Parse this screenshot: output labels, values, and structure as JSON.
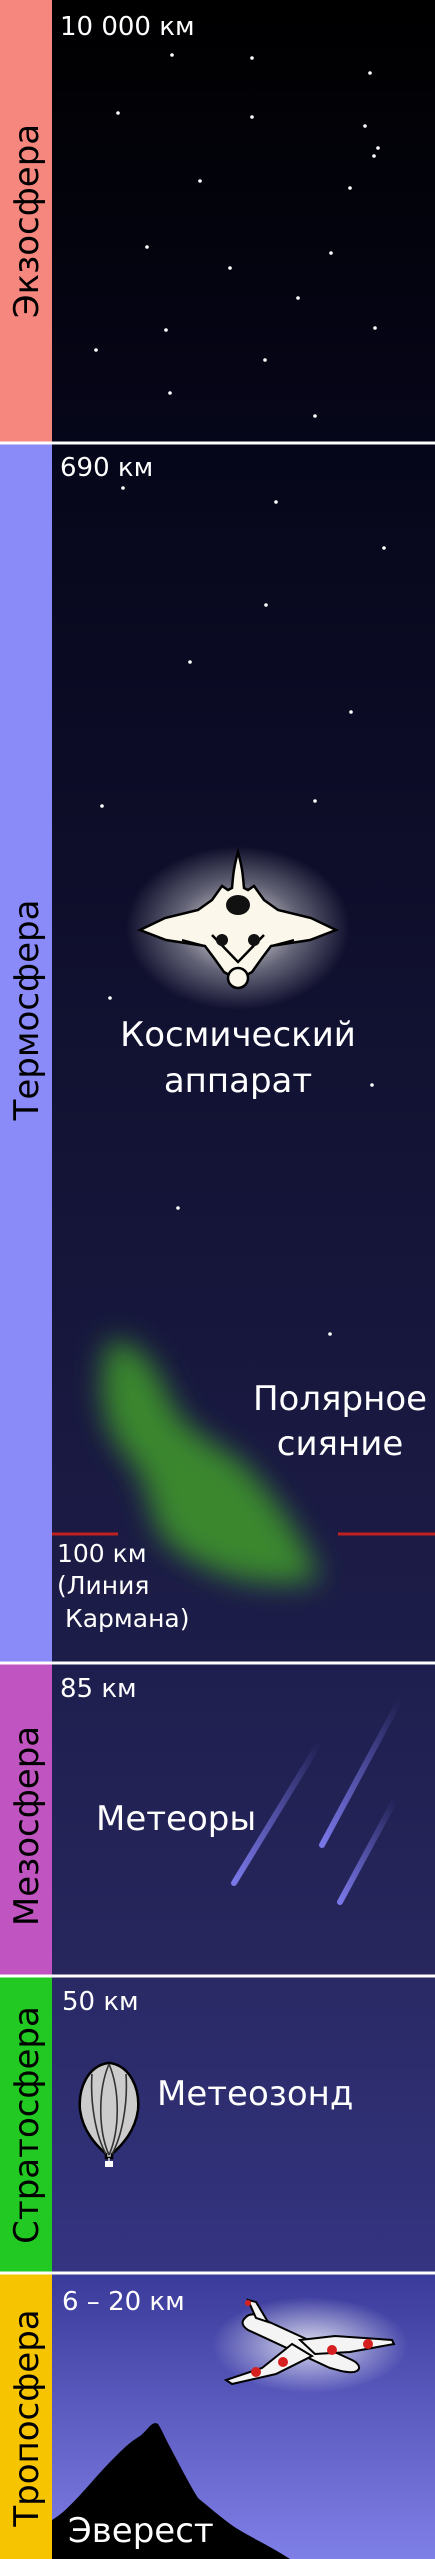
{
  "layers": [
    {
      "id": "exosphere",
      "name": "Экзосфера",
      "altitude": "10 000 км",
      "side_color": "#f6877e"
    },
    {
      "id": "thermosphere",
      "name": "Термосфера",
      "altitude": "690 км",
      "side_color": "#8a8af8"
    },
    {
      "id": "mesosphere",
      "name": "Мезосфера",
      "altitude": "85 км",
      "side_color": "#c054c0"
    },
    {
      "id": "stratosphere",
      "name": "Стратосфера",
      "altitude": "50 км",
      "side_color": "#22c922"
    },
    {
      "id": "troposphere",
      "name": "Тропосфера",
      "altitude": "6 – 20 км",
      "side_color": "#f6c400"
    }
  ],
  "labels": {
    "spacecraft": [
      "Космический",
      "аппарат"
    ],
    "aurora": [
      "Полярное",
      "сияние"
    ],
    "karman": [
      "100 км",
      "(Линия",
      " Кармана)"
    ],
    "meteors": "Метеоры",
    "balloon": "Метеозонд",
    "everest": "Эверест"
  },
  "colors": {
    "karman_line": "#c0201e",
    "aurora": "#3f9a2a",
    "meteor": "#7a78e8",
    "divider": "#ffffff"
  }
}
